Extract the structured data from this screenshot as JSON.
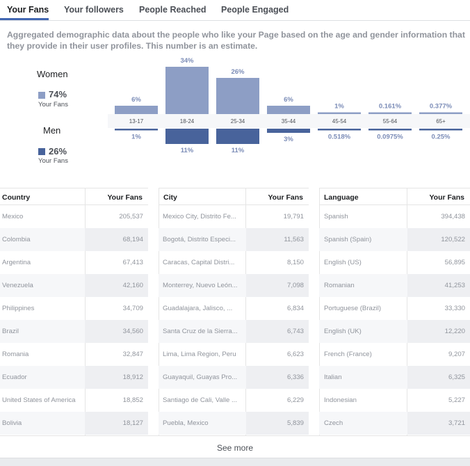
{
  "tabs": [
    {
      "label": "Your Fans",
      "active": true
    },
    {
      "label": "Your followers",
      "active": false
    },
    {
      "label": "People Reached",
      "active": false
    },
    {
      "label": "People Engaged",
      "active": false
    }
  ],
  "description": "Aggregated demographic data about the people who like your Page based on the age and gender information that they provide in their user profiles. This number is an estimate.",
  "legend": {
    "women": {
      "title": "Women",
      "pct": "74%",
      "sub": "Your Fans",
      "color": "#8d9ec5"
    },
    "men": {
      "title": "Men",
      "pct": "26%",
      "sub": "Your Fans",
      "color": "#48639b"
    }
  },
  "chart_data": {
    "type": "bar",
    "categories": [
      "13-17",
      "18-24",
      "25-34",
      "35-44",
      "45-54",
      "55-64",
      "65+"
    ],
    "series": [
      {
        "name": "Women",
        "values": [
          6,
          34,
          26,
          6,
          1,
          0.161,
          0.377
        ],
        "labels": [
          "6%",
          "34%",
          "26%",
          "6%",
          "1%",
          "0.161%",
          "0.377%"
        ]
      },
      {
        "name": "Men",
        "values": [
          1,
          11,
          11,
          3,
          0.518,
          0.0975,
          0.25
        ],
        "labels": [
          "1%",
          "11%",
          "11%",
          "3%",
          "0.518%",
          "0.0975%",
          "0.25%"
        ]
      }
    ]
  },
  "tables": {
    "country": {
      "headers": [
        "Country",
        "Your Fans"
      ],
      "rows": [
        [
          "Mexico",
          "205,537"
        ],
        [
          "Colombia",
          "68,194"
        ],
        [
          "Argentina",
          "67,413"
        ],
        [
          "Venezuela",
          "42,160"
        ],
        [
          "Philippines",
          "34,709"
        ],
        [
          "Brazil",
          "34,560"
        ],
        [
          "Romania",
          "32,847"
        ],
        [
          "Ecuador",
          "18,912"
        ],
        [
          "United States of America",
          "18,852"
        ],
        [
          "Bolivia",
          "18,127"
        ]
      ]
    },
    "city": {
      "headers": [
        "City",
        "Your Fans"
      ],
      "rows": [
        [
          "Mexico City, Distrito Fe...",
          "19,791"
        ],
        [
          "Bogotá, Distrito Especi...",
          "11,563"
        ],
        [
          "Caracas, Capital Distri...",
          "8,150"
        ],
        [
          "Monterrey, Nuevo León...",
          "7,098"
        ],
        [
          "Guadalajara, Jalisco, ...",
          "6,834"
        ],
        [
          "Santa Cruz de la Sierra...",
          "6,743"
        ],
        [
          "Lima, Lima Region, Peru",
          "6,623"
        ],
        [
          "Guayaquil, Guayas Pro...",
          "6,336"
        ],
        [
          "Santiago de Cali, Valle ...",
          "6,229"
        ],
        [
          "Puebla, Mexico",
          "5,839"
        ]
      ]
    },
    "language": {
      "headers": [
        "Language",
        "Your Fans"
      ],
      "rows": [
        [
          "Spanish",
          "394,438"
        ],
        [
          "Spanish (Spain)",
          "120,522"
        ],
        [
          "English (US)",
          "56,895"
        ],
        [
          "Romanian",
          "41,253"
        ],
        [
          "Portuguese (Brazil)",
          "33,330"
        ],
        [
          "English (UK)",
          "12,220"
        ],
        [
          "French (France)",
          "9,207"
        ],
        [
          "Italian",
          "6,325"
        ],
        [
          "Indonesian",
          "5,227"
        ],
        [
          "Czech",
          "3,721"
        ]
      ]
    }
  },
  "see_more": "See more"
}
